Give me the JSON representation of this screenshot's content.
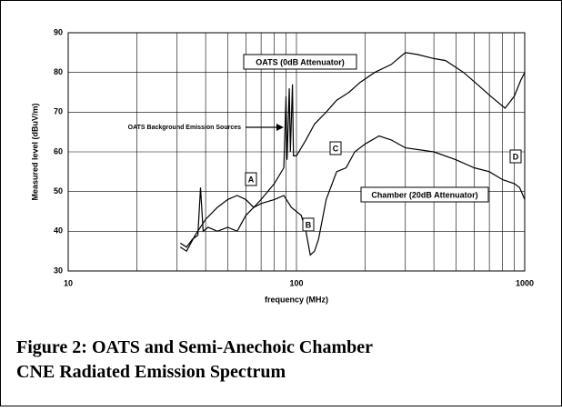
{
  "chart_data": {
    "type": "line",
    "ylabel": "Measured level (dBuV/m)",
    "xlabel": "frequency (MHz)",
    "caption": [
      "Figure 2: OATS and Semi-Anechoic Chamber",
      "CNE Radiated Emission Spectrum"
    ],
    "xlim": [
      10,
      1000
    ],
    "xticks": [
      10,
      100,
      1000
    ],
    "xminor": [
      20,
      30,
      40,
      50,
      60,
      70,
      80,
      90,
      200,
      300,
      400,
      500,
      600,
      700,
      800,
      900
    ],
    "xscale": "log",
    "ylim": [
      30,
      90
    ],
    "yticks": [
      30,
      40,
      50,
      60,
      70,
      80,
      90
    ],
    "grid": true,
    "series": [
      {
        "name": "OATS (0dB Attenuator)",
        "color": "#000000",
        "x": [
          31,
          33,
          35,
          37,
          38,
          39,
          41,
          45,
          50,
          55,
          60,
          65,
          70,
          80,
          88,
          90,
          91,
          93,
          94,
          96,
          97,
          100,
          110,
          120,
          135,
          150,
          170,
          190,
          220,
          260,
          300,
          340,
          400,
          450,
          540,
          620,
          710,
          820,
          900,
          960,
          1000
        ],
        "values": [
          37,
          36,
          38,
          39,
          51,
          40,
          41,
          40,
          41,
          40,
          44,
          46,
          48,
          52,
          56,
          74,
          58,
          76,
          60,
          77,
          59,
          59,
          63,
          67,
          70,
          73,
          75,
          77.5,
          80,
          82,
          85,
          84.5,
          83.5,
          83,
          80,
          77,
          74,
          71,
          74,
          78,
          80
        ]
      },
      {
        "name": "Chamber (20dB Attenuator)",
        "color": "#000000",
        "x": [
          31,
          33,
          36,
          40,
          45,
          50,
          55,
          60,
          65,
          70,
          80,
          88,
          95,
          105,
          110,
          115,
          120,
          125,
          135,
          150,
          165,
          180,
          200,
          230,
          260,
          300,
          400,
          500,
          600,
          700,
          800,
          900,
          950,
          1000
        ],
        "values": [
          36,
          35,
          39,
          43,
          46,
          48,
          49,
          48,
          46,
          47,
          48,
          49,
          46,
          44,
          40,
          34,
          35,
          38,
          48,
          55,
          56,
          60,
          62,
          64,
          63,
          61,
          60,
          58,
          56,
          55,
          53,
          52,
          51,
          48
        ]
      }
    ],
    "annotations": [
      "OATS Background Emission Sources",
      "A",
      "B",
      "C",
      "D"
    ]
  }
}
